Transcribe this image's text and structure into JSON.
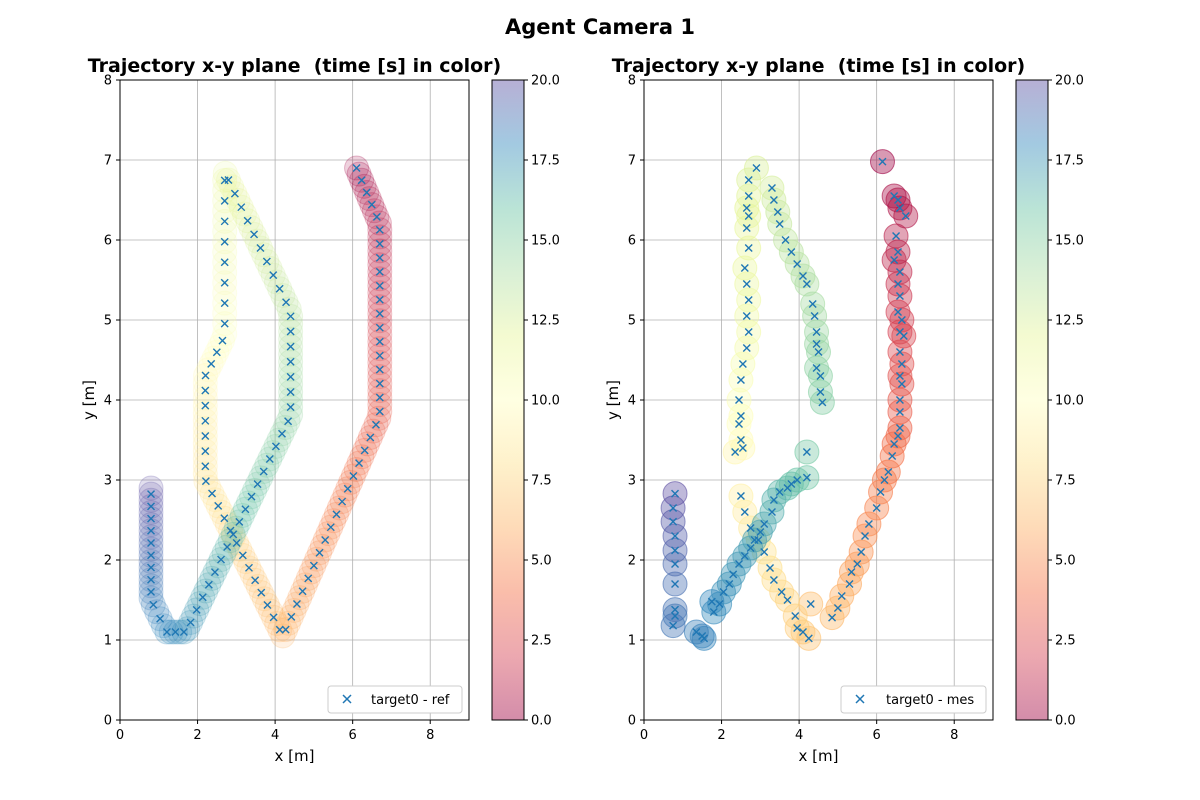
{
  "figure": {
    "title": "Agent Camera 1"
  },
  "chart_data": [
    {
      "type": "scatter",
      "title": "Trajectory x-y plane  (time [s] in color)",
      "xlabel": "x [m]",
      "ylabel": "y [m]",
      "xlim": [
        0,
        9
      ],
      "ylim": [
        0,
        8
      ],
      "xticks": [
        "0",
        "2",
        "4",
        "6",
        "8"
      ],
      "yticks": [
        "0",
        "1",
        "2",
        "3",
        "4",
        "5",
        "6",
        "7",
        "8"
      ],
      "grid": true,
      "legend": {
        "label": "target0 - ref",
        "position": "lower-right"
      },
      "colorbar": {
        "min": 0,
        "max": 20,
        "ticks": [
          "0.0",
          "2.5",
          "5.0",
          "7.5",
          "10.0",
          "12.5",
          "15.0",
          "17.5",
          "20.0"
        ],
        "colormap": "Spectral"
      },
      "waypoints": [
        {
          "t": 0,
          "x": 6.1,
          "y": 6.9
        },
        {
          "t": 0.8,
          "x": 6.7,
          "y": 6.2
        },
        {
          "t": 3.2,
          "x": 6.7,
          "y": 3.8
        },
        {
          "t": 6.2,
          "x": 4.2,
          "y": 1.05
        },
        {
          "t": 8.4,
          "x": 2.2,
          "y": 3.0
        },
        {
          "t": 9.6,
          "x": 2.2,
          "y": 4.3
        },
        {
          "t": 10.2,
          "x": 2.7,
          "y": 4.8
        },
        {
          "t": 11.6,
          "x": 2.7,
          "y": 6.85
        },
        {
          "t": 13.4,
          "x": 4.4,
          "y": 5.1
        },
        {
          "t": 14.6,
          "x": 4.4,
          "y": 3.8
        },
        {
          "t": 17.6,
          "x": 1.7,
          "y": 1.1
        },
        {
          "t": 18.0,
          "x": 1.2,
          "y": 1.1
        },
        {
          "t": 18.4,
          "x": 0.8,
          "y": 1.5
        },
        {
          "t": 20.0,
          "x": 0.8,
          "y": 2.9
        }
      ],
      "samples": 230
    },
    {
      "type": "scatter",
      "title": "Trajectory x-y plane  (time [s] in color)",
      "xlabel": "x [m]",
      "ylabel": "y [m]",
      "xlim": [
        0,
        9
      ],
      "ylim": [
        0,
        8
      ],
      "xticks": [
        "0",
        "2",
        "4",
        "6",
        "8"
      ],
      "yticks": [
        "0",
        "1",
        "2",
        "3",
        "4",
        "5",
        "6",
        "7",
        "8"
      ],
      "grid": true,
      "legend": {
        "label": "target0 - mes",
        "position": "lower-right"
      },
      "colorbar": {
        "min": 0,
        "max": 20,
        "ticks": [
          "0.0",
          "2.5",
          "5.0",
          "7.5",
          "10.0",
          "12.5",
          "15.0",
          "17.5",
          "20.0"
        ],
        "colormap": "Spectral"
      },
      "points": [
        {
          "t": 0.0,
          "x": 6.15,
          "y": 6.98
        },
        {
          "t": 0.4,
          "x": 6.45,
          "y": 6.55
        },
        {
          "t": 0.5,
          "x": 6.55,
          "y": 6.5
        },
        {
          "t": 0.6,
          "x": 6.6,
          "y": 6.4
        },
        {
          "t": 0.7,
          "x": 6.75,
          "y": 6.3
        },
        {
          "t": 0.9,
          "x": 6.5,
          "y": 6.05
        },
        {
          "t": 1.0,
          "x": 6.55,
          "y": 5.85
        },
        {
          "t": 1.1,
          "x": 6.45,
          "y": 5.75
        },
        {
          "t": 1.2,
          "x": 6.6,
          "y": 5.6
        },
        {
          "t": 1.4,
          "x": 6.55,
          "y": 5.45
        },
        {
          "t": 1.6,
          "x": 6.6,
          "y": 5.3
        },
        {
          "t": 1.8,
          "x": 6.55,
          "y": 5.1
        },
        {
          "t": 1.9,
          "x": 6.65,
          "y": 5.0
        },
        {
          "t": 2.0,
          "x": 6.6,
          "y": 4.85
        },
        {
          "t": 2.2,
          "x": 6.7,
          "y": 4.8
        },
        {
          "t": 2.4,
          "x": 6.6,
          "y": 4.6
        },
        {
          "t": 2.6,
          "x": 6.65,
          "y": 4.45
        },
        {
          "t": 2.7,
          "x": 6.6,
          "y": 4.3
        },
        {
          "t": 2.8,
          "x": 6.65,
          "y": 4.2
        },
        {
          "t": 3.0,
          "x": 6.6,
          "y": 4.0
        },
        {
          "t": 3.2,
          "x": 6.6,
          "y": 3.85
        },
        {
          "t": 3.4,
          "x": 6.6,
          "y": 3.65
        },
        {
          "t": 3.6,
          "x": 6.55,
          "y": 3.55
        },
        {
          "t": 3.8,
          "x": 6.45,
          "y": 3.45
        },
        {
          "t": 4.0,
          "x": 6.4,
          "y": 3.3
        },
        {
          "t": 4.2,
          "x": 6.3,
          "y": 3.1
        },
        {
          "t": 4.3,
          "x": 6.2,
          "y": 3.0
        },
        {
          "t": 4.5,
          "x": 6.1,
          "y": 2.85
        },
        {
          "t": 4.6,
          "x": 6.0,
          "y": 2.65
        },
        {
          "t": 4.8,
          "x": 5.8,
          "y": 2.45
        },
        {
          "t": 5.0,
          "x": 5.7,
          "y": 2.3
        },
        {
          "t": 5.2,
          "x": 5.6,
          "y": 2.1
        },
        {
          "t": 5.4,
          "x": 5.5,
          "y": 1.95
        },
        {
          "t": 5.6,
          "x": 5.35,
          "y": 1.85
        },
        {
          "t": 5.8,
          "x": 5.3,
          "y": 1.7
        },
        {
          "t": 6.0,
          "x": 5.1,
          "y": 1.55
        },
        {
          "t": 6.2,
          "x": 5.0,
          "y": 1.4
        },
        {
          "t": 6.4,
          "x": 4.85,
          "y": 1.28
        },
        {
          "t": 6.6,
          "x": 4.3,
          "y": 1.45
        },
        {
          "t": 6.8,
          "x": 4.25,
          "y": 1.02
        },
        {
          "t": 7.0,
          "x": 4.1,
          "y": 1.1
        },
        {
          "t": 7.2,
          "x": 3.95,
          "y": 1.15
        },
        {
          "t": 7.3,
          "x": 3.9,
          "y": 1.3
        },
        {
          "t": 7.5,
          "x": 3.7,
          "y": 1.5
        },
        {
          "t": 7.6,
          "x": 3.55,
          "y": 1.6
        },
        {
          "t": 7.8,
          "x": 3.35,
          "y": 1.75
        },
        {
          "t": 8.0,
          "x": 3.25,
          "y": 1.9
        },
        {
          "t": 8.2,
          "x": 3.1,
          "y": 2.1
        },
        {
          "t": 8.4,
          "x": 2.95,
          "y": 2.25
        },
        {
          "t": 8.6,
          "x": 2.75,
          "y": 2.4
        },
        {
          "t": 8.8,
          "x": 2.6,
          "y": 2.6
        },
        {
          "t": 9.0,
          "x": 2.5,
          "y": 2.8
        },
        {
          "t": 9.4,
          "x": 2.35,
          "y": 3.35
        },
        {
          "t": 9.6,
          "x": 2.55,
          "y": 3.4
        },
        {
          "t": 9.8,
          "x": 2.5,
          "y": 3.5
        },
        {
          "t": 10.0,
          "x": 2.45,
          "y": 3.7
        },
        {
          "t": 10.2,
          "x": 2.5,
          "y": 3.8
        },
        {
          "t": 10.3,
          "x": 2.45,
          "y": 4.0
        },
        {
          "t": 10.5,
          "x": 2.5,
          "y": 4.25
        },
        {
          "t": 10.7,
          "x": 2.55,
          "y": 4.45
        },
        {
          "t": 10.9,
          "x": 2.65,
          "y": 4.65
        },
        {
          "t": 11.0,
          "x": 2.7,
          "y": 4.85
        },
        {
          "t": 11.2,
          "x": 2.65,
          "y": 5.05
        },
        {
          "t": 11.3,
          "x": 2.7,
          "y": 5.25
        },
        {
          "t": 11.5,
          "x": 2.65,
          "y": 5.45
        },
        {
          "t": 11.6,
          "x": 2.6,
          "y": 5.65
        },
        {
          "t": 11.7,
          "x": 2.7,
          "y": 5.9
        },
        {
          "t": 11.8,
          "x": 2.65,
          "y": 6.15
        },
        {
          "t": 11.9,
          "x": 2.7,
          "y": 6.3
        },
        {
          "t": 12.0,
          "x": 2.65,
          "y": 6.4
        },
        {
          "t": 12.1,
          "x": 2.7,
          "y": 6.55
        },
        {
          "t": 12.3,
          "x": 2.7,
          "y": 6.75
        },
        {
          "t": 12.4,
          "x": 2.9,
          "y": 6.9
        },
        {
          "t": 12.6,
          "x": 3.3,
          "y": 6.65
        },
        {
          "t": 12.8,
          "x": 3.35,
          "y": 6.5
        },
        {
          "t": 13.0,
          "x": 3.45,
          "y": 6.35
        },
        {
          "t": 13.1,
          "x": 3.5,
          "y": 6.2
        },
        {
          "t": 13.3,
          "x": 3.65,
          "y": 6.0
        },
        {
          "t": 13.5,
          "x": 3.8,
          "y": 5.85
        },
        {
          "t": 13.6,
          "x": 3.95,
          "y": 5.7
        },
        {
          "t": 13.8,
          "x": 4.1,
          "y": 5.55
        },
        {
          "t": 13.9,
          "x": 4.2,
          "y": 5.45
        },
        {
          "t": 14.1,
          "x": 4.35,
          "y": 5.2
        },
        {
          "t": 14.2,
          "x": 4.4,
          "y": 5.05
        },
        {
          "t": 14.4,
          "x": 4.45,
          "y": 4.85
        },
        {
          "t": 14.5,
          "x": 4.45,
          "y": 4.7
        },
        {
          "t": 14.6,
          "x": 4.5,
          "y": 4.6
        },
        {
          "t": 14.8,
          "x": 4.45,
          "y": 4.4
        },
        {
          "t": 14.9,
          "x": 4.55,
          "y": 4.3
        },
        {
          "t": 15.0,
          "x": 4.55,
          "y": 4.1
        },
        {
          "t": 15.1,
          "x": 4.6,
          "y": 3.97
        },
        {
          "t": 15.5,
          "x": 4.2,
          "y": 3.35
        },
        {
          "t": 15.7,
          "x": 4.2,
          "y": 3.03
        },
        {
          "t": 15.9,
          "x": 3.95,
          "y": 3.0
        },
        {
          "t": 16.1,
          "x": 3.8,
          "y": 2.95
        },
        {
          "t": 16.2,
          "x": 3.7,
          "y": 2.9
        },
        {
          "t": 16.4,
          "x": 3.5,
          "y": 2.85
        },
        {
          "t": 16.6,
          "x": 3.35,
          "y": 2.75
        },
        {
          "t": 16.7,
          "x": 3.3,
          "y": 2.6
        },
        {
          "t": 16.9,
          "x": 3.1,
          "y": 2.45
        },
        {
          "t": 17.0,
          "x": 3.0,
          "y": 2.35
        },
        {
          "t": 17.1,
          "x": 2.85,
          "y": 2.25
        },
        {
          "t": 17.2,
          "x": 2.75,
          "y": 2.15
        },
        {
          "t": 17.3,
          "x": 2.6,
          "y": 2.05
        },
        {
          "t": 17.4,
          "x": 2.45,
          "y": 1.95
        },
        {
          "t": 17.5,
          "x": 2.3,
          "y": 1.82
        },
        {
          "t": 17.6,
          "x": 2.2,
          "y": 1.7
        },
        {
          "t": 17.7,
          "x": 2.05,
          "y": 1.6
        },
        {
          "t": 17.8,
          "x": 1.95,
          "y": 1.45
        },
        {
          "t": 17.9,
          "x": 1.8,
          "y": 1.35
        },
        {
          "t": 18.0,
          "x": 1.75,
          "y": 1.48
        },
        {
          "t": 18.1,
          "x": 1.55,
          "y": 1.02
        },
        {
          "t": 18.2,
          "x": 1.5,
          "y": 1.05
        },
        {
          "t": 18.3,
          "x": 1.35,
          "y": 1.1
        },
        {
          "t": 18.6,
          "x": 0.8,
          "y": 1.3
        },
        {
          "t": 18.7,
          "x": 0.75,
          "y": 1.18
        },
        {
          "t": 18.8,
          "x": 0.8,
          "y": 1.38
        },
        {
          "t": 18.9,
          "x": 0.8,
          "y": 1.7
        },
        {
          "t": 19.1,
          "x": 0.8,
          "y": 1.95
        },
        {
          "t": 19.3,
          "x": 0.8,
          "y": 2.12
        },
        {
          "t": 19.5,
          "x": 0.8,
          "y": 2.3
        },
        {
          "t": 19.6,
          "x": 0.75,
          "y": 2.48
        },
        {
          "t": 19.8,
          "x": 0.75,
          "y": 2.65
        },
        {
          "t": 20.0,
          "x": 0.8,
          "y": 2.83
        }
      ]
    }
  ]
}
